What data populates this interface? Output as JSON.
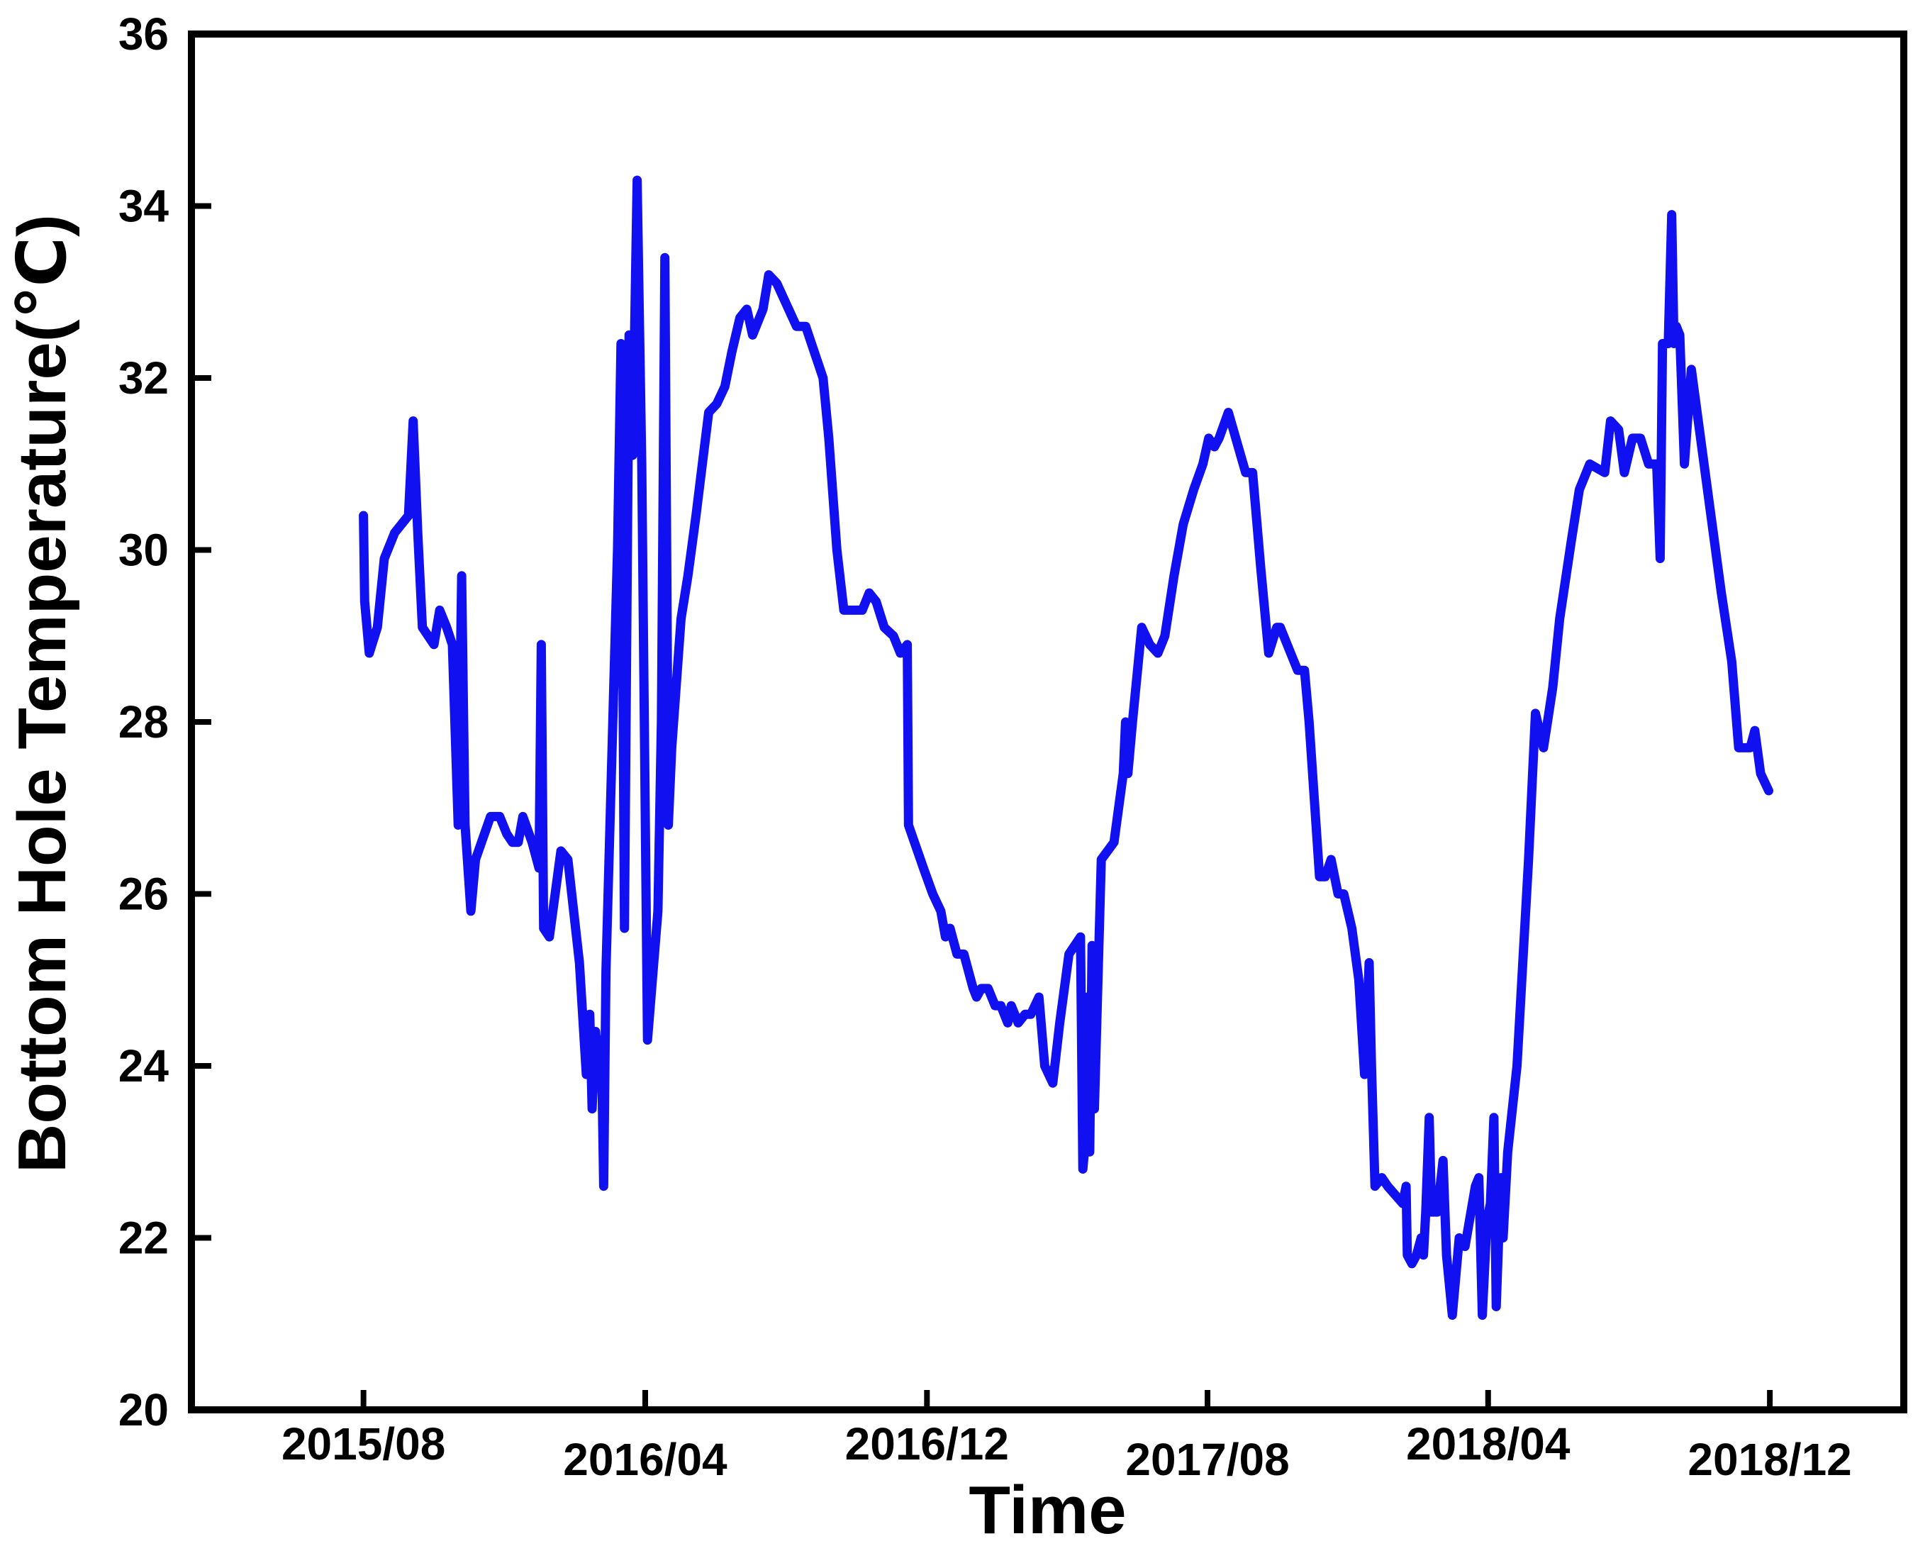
{
  "chart_data": {
    "type": "line",
    "xlabel": "Time",
    "ylabel": "Bottom Hole Temperature(℃)",
    "ylim": [
      20,
      36
    ],
    "yticks": [
      20,
      22,
      24,
      26,
      28,
      30,
      32,
      34,
      36
    ],
    "xlim": [
      "2015-03-05",
      "2019-03-27"
    ],
    "xticks": [
      {
        "date": "2015-08-01",
        "label": "2015/08"
      },
      {
        "date": "2016-04-01",
        "label": "2016/04"
      },
      {
        "date": "2016-12-01",
        "label": "2016/12"
      },
      {
        "date": "2017-08-01",
        "label": "2017/08"
      },
      {
        "date": "2018-04-01",
        "label": "2018/04"
      },
      {
        "date": "2018-12-01",
        "label": "2018/12"
      }
    ],
    "grid": false,
    "line_color": "#1010f0",
    "series": [
      {
        "points": [
          [
            "2015-08-01",
            30.4
          ],
          [
            "2015-08-02",
            29.4
          ],
          [
            "2015-08-06",
            28.8
          ],
          [
            "2015-08-13",
            29.1
          ],
          [
            "2015-08-19",
            29.9
          ],
          [
            "2015-08-28",
            30.2
          ],
          [
            "2015-09-09",
            30.4
          ],
          [
            "2015-09-13",
            31.5
          ],
          [
            "2015-09-17",
            30.2
          ],
          [
            "2015-09-21",
            29.1
          ],
          [
            "2015-10-01",
            28.9
          ],
          [
            "2015-10-06",
            29.3
          ],
          [
            "2015-10-12",
            29.1
          ],
          [
            "2015-10-17",
            28.9
          ],
          [
            "2015-10-22",
            26.8
          ],
          [
            "2015-10-25",
            29.7
          ],
          [
            "2015-10-28",
            26.8
          ],
          [
            "2015-11-02",
            25.8
          ],
          [
            "2015-11-06",
            26.4
          ],
          [
            "2015-11-19",
            26.9
          ],
          [
            "2015-11-27",
            26.9
          ],
          [
            "2015-12-03",
            26.7
          ],
          [
            "2015-12-08",
            26.6
          ],
          [
            "2015-12-13",
            26.6
          ],
          [
            "2015-12-17",
            26.9
          ],
          [
            "2015-12-25",
            26.6
          ],
          [
            "2015-12-31",
            26.3
          ],
          [
            "2016-01-02",
            28.9
          ],
          [
            "2016-01-04",
            25.6
          ],
          [
            "2016-01-09",
            25.5
          ],
          [
            "2016-01-19",
            26.5
          ],
          [
            "2016-01-25",
            26.4
          ],
          [
            "2016-02-04",
            25.2
          ],
          [
            "2016-02-10",
            23.9
          ],
          [
            "2016-02-13",
            24.6
          ],
          [
            "2016-02-15",
            23.5
          ],
          [
            "2016-02-18",
            24.4
          ],
          [
            "2016-02-21",
            23.8
          ],
          [
            "2016-02-23",
            24.3
          ],
          [
            "2016-02-25",
            22.6
          ],
          [
            "2016-02-27",
            25.1
          ],
          [
            "2016-03-08",
            30.0
          ],
          [
            "2016-03-11",
            32.4
          ],
          [
            "2016-03-14",
            25.6
          ],
          [
            "2016-03-18",
            32.5
          ],
          [
            "2016-03-21",
            31.1
          ],
          [
            "2016-03-25",
            34.3
          ],
          [
            "2016-03-29",
            31.0
          ],
          [
            "2016-04-03",
            24.3
          ],
          [
            "2016-04-12",
            25.8
          ],
          [
            "2016-04-15",
            28.0
          ],
          [
            "2016-04-18",
            33.4
          ],
          [
            "2016-04-21",
            26.8
          ],
          [
            "2016-04-24",
            27.7
          ],
          [
            "2016-05-02",
            29.2
          ],
          [
            "2016-05-08",
            29.7
          ],
          [
            "2016-05-15",
            30.4
          ],
          [
            "2016-05-26",
            31.6
          ],
          [
            "2016-06-02",
            31.7
          ],
          [
            "2016-06-09",
            31.9
          ],
          [
            "2016-06-15",
            32.3
          ],
          [
            "2016-06-22",
            32.7
          ],
          [
            "2016-06-28",
            32.8
          ],
          [
            "2016-07-03",
            32.5
          ],
          [
            "2016-07-12",
            32.8
          ],
          [
            "2016-07-17",
            33.2
          ],
          [
            "2016-07-24",
            33.1
          ],
          [
            "2016-08-10",
            32.6
          ],
          [
            "2016-08-18",
            32.6
          ],
          [
            "2016-09-02",
            32.0
          ],
          [
            "2016-09-07",
            31.3
          ],
          [
            "2016-09-14",
            30.0
          ],
          [
            "2016-09-20",
            29.3
          ],
          [
            "2016-09-30",
            29.3
          ],
          [
            "2016-10-06",
            29.3
          ],
          [
            "2016-10-12",
            29.5
          ],
          [
            "2016-10-18",
            29.4
          ],
          [
            "2016-10-25",
            29.1
          ],
          [
            "2016-11-02",
            29.0
          ],
          [
            "2016-11-08",
            28.8
          ],
          [
            "2016-11-14",
            28.9
          ],
          [
            "2016-11-15",
            26.8
          ],
          [
            "2016-11-28",
            26.3
          ],
          [
            "2016-12-06",
            26.0
          ],
          [
            "2016-12-13",
            25.8
          ],
          [
            "2016-12-17",
            25.5
          ],
          [
            "2016-12-21",
            25.6
          ],
          [
            "2016-12-27",
            25.3
          ],
          [
            "2017-01-02",
            25.3
          ],
          [
            "2017-01-10",
            24.9
          ],
          [
            "2017-01-13",
            24.8
          ],
          [
            "2017-01-17",
            24.9
          ],
          [
            "2017-01-23",
            24.9
          ],
          [
            "2017-01-29",
            24.7
          ],
          [
            "2017-02-03",
            24.7
          ],
          [
            "2017-02-09",
            24.5
          ],
          [
            "2017-02-12",
            24.7
          ],
          [
            "2017-02-18",
            24.5
          ],
          [
            "2017-02-24",
            24.6
          ],
          [
            "2017-03-01",
            24.6
          ],
          [
            "2017-03-08",
            24.8
          ],
          [
            "2017-03-13",
            24.0
          ],
          [
            "2017-03-20",
            23.8
          ],
          [
            "2017-03-26",
            24.5
          ],
          [
            "2017-04-03",
            25.3
          ],
          [
            "2017-04-13",
            25.5
          ],
          [
            "2017-04-15",
            22.8
          ],
          [
            "2017-04-17",
            23.1
          ],
          [
            "2017-04-19",
            24.8
          ],
          [
            "2017-04-21",
            23.0
          ],
          [
            "2017-04-23",
            25.4
          ],
          [
            "2017-04-25",
            23.5
          ],
          [
            "2017-05-01",
            26.4
          ],
          [
            "2017-05-12",
            26.6
          ],
          [
            "2017-05-20",
            27.4
          ],
          [
            "2017-05-22",
            28.0
          ],
          [
            "2017-05-24",
            27.4
          ],
          [
            "2017-05-28",
            28.0
          ],
          [
            "2017-06-05",
            29.1
          ],
          [
            "2017-06-12",
            28.9
          ],
          [
            "2017-06-19",
            28.8
          ],
          [
            "2017-06-25",
            29.0
          ],
          [
            "2017-07-03",
            29.7
          ],
          [
            "2017-07-11",
            30.3
          ],
          [
            "2017-07-20",
            30.7
          ],
          [
            "2017-07-28",
            31.0
          ],
          [
            "2017-08-02",
            31.3
          ],
          [
            "2017-08-07",
            31.2
          ],
          [
            "2017-08-11",
            31.3
          ],
          [
            "2017-08-19",
            31.6
          ],
          [
            "2017-09-03",
            30.9
          ],
          [
            "2017-09-09",
            30.9
          ],
          [
            "2017-09-16",
            29.8
          ],
          [
            "2017-09-23",
            28.8
          ],
          [
            "2017-09-30",
            29.1
          ],
          [
            "2017-10-03",
            29.1
          ],
          [
            "2017-10-12",
            28.8
          ],
          [
            "2017-10-18",
            28.6
          ],
          [
            "2017-10-24",
            28.6
          ],
          [
            "2017-10-28",
            28.0
          ],
          [
            "2017-11-06",
            26.2
          ],
          [
            "2017-11-11",
            26.2
          ],
          [
            "2017-11-16",
            26.4
          ],
          [
            "2017-11-22",
            26.0
          ],
          [
            "2017-11-27",
            26.0
          ],
          [
            "2017-12-04",
            25.6
          ],
          [
            "2017-12-10",
            25.0
          ],
          [
            "2017-12-15",
            23.9
          ],
          [
            "2017-12-19",
            25.2
          ],
          [
            "2017-12-21",
            24.0
          ],
          [
            "2017-12-24",
            22.6
          ],
          [
            "2017-12-30",
            22.7
          ],
          [
            "2018-01-04",
            22.6
          ],
          [
            "2018-01-17",
            22.4
          ],
          [
            "2018-01-20",
            22.6
          ],
          [
            "2018-01-21",
            21.8
          ],
          [
            "2018-01-25",
            21.7
          ],
          [
            "2018-01-29",
            21.8
          ],
          [
            "2018-02-02",
            22.0
          ],
          [
            "2018-02-04",
            21.8
          ],
          [
            "2018-02-06",
            22.3
          ],
          [
            "2018-02-09",
            23.4
          ],
          [
            "2018-02-11",
            22.3
          ],
          [
            "2018-02-16",
            22.3
          ],
          [
            "2018-02-21",
            22.9
          ],
          [
            "2018-02-24",
            21.8
          ],
          [
            "2018-03-01",
            21.1
          ],
          [
            "2018-03-07",
            22.0
          ],
          [
            "2018-03-12",
            21.9
          ],
          [
            "2018-03-21",
            22.6
          ],
          [
            "2018-03-24",
            22.7
          ],
          [
            "2018-03-27",
            21.1
          ],
          [
            "2018-03-31",
            22.2
          ],
          [
            "2018-04-03",
            22.4
          ],
          [
            "2018-04-06",
            23.4
          ],
          [
            "2018-04-08",
            21.2
          ],
          [
            "2018-04-12",
            22.7
          ],
          [
            "2018-04-14",
            22.0
          ],
          [
            "2018-04-18",
            23.0
          ],
          [
            "2018-04-26",
            24.0
          ],
          [
            "2018-05-06",
            26.4
          ],
          [
            "2018-05-12",
            28.1
          ],
          [
            "2018-05-19",
            27.7
          ],
          [
            "2018-05-27",
            28.4
          ],
          [
            "2018-06-02",
            29.2
          ],
          [
            "2018-06-12",
            30.1
          ],
          [
            "2018-06-19",
            30.7
          ],
          [
            "2018-06-28",
            31.0
          ],
          [
            "2018-07-11",
            30.9
          ],
          [
            "2018-07-16",
            31.5
          ],
          [
            "2018-07-23",
            31.4
          ],
          [
            "2018-07-28",
            30.9
          ],
          [
            "2018-08-04",
            31.3
          ],
          [
            "2018-08-11",
            31.3
          ],
          [
            "2018-08-18",
            31.0
          ],
          [
            "2018-08-25",
            31.0
          ],
          [
            "2018-08-28",
            29.9
          ],
          [
            "2018-08-30",
            32.4
          ],
          [
            "2018-09-04",
            32.4
          ],
          [
            "2018-09-07",
            33.9
          ],
          [
            "2018-09-09",
            32.4
          ],
          [
            "2018-09-11",
            32.6
          ],
          [
            "2018-09-14",
            32.5
          ],
          [
            "2018-09-18",
            31.0
          ],
          [
            "2018-09-24",
            32.1
          ],
          [
            "2018-10-02",
            31.3
          ],
          [
            "2018-10-10",
            30.5
          ],
          [
            "2018-10-20",
            29.5
          ],
          [
            "2018-10-29",
            28.7
          ],
          [
            "2018-11-04",
            27.7
          ],
          [
            "2018-11-14",
            27.7
          ],
          [
            "2018-11-18",
            27.9
          ],
          [
            "2018-11-23",
            27.4
          ],
          [
            "2018-11-30",
            27.2
          ]
        ]
      }
    ]
  }
}
